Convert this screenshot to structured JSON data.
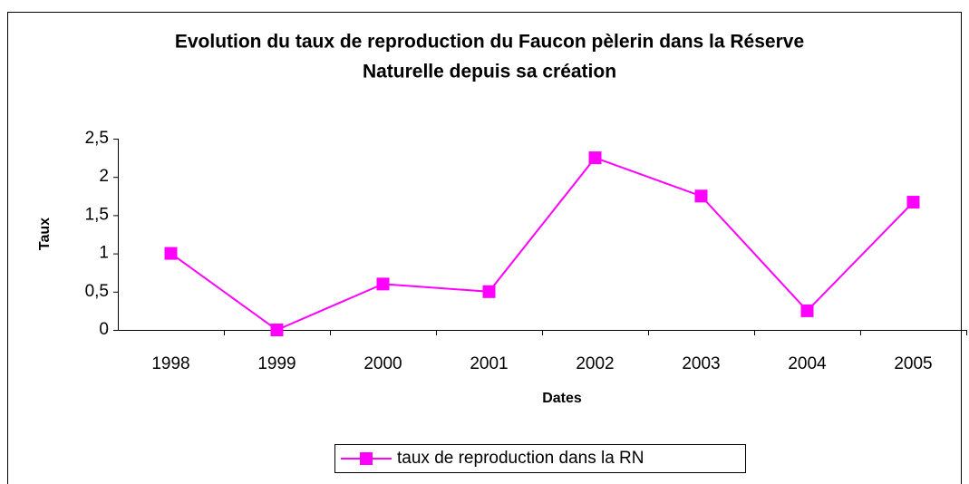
{
  "chart_data": {
    "type": "line",
    "title": [
      "Evolution du taux de reproduction du Faucon pèlerin  dans la Réserve",
      "Naturelle depuis sa création"
    ],
    "x_label": "Dates",
    "y_label": "Taux",
    "categories": [
      "1998",
      "1999",
      "2000",
      "2001",
      "2002",
      "2003",
      "2004",
      "2005"
    ],
    "series": [
      {
        "name": "taux de reproduction dans la RN",
        "color": "#ff00ff",
        "values": [
          1,
          0,
          0.6,
          0.5,
          2.25,
          1.75,
          0.25,
          1.67
        ]
      }
    ],
    "ylim": [
      0,
      2.5
    ],
    "yticks": [
      0,
      {
        "value": 0.5,
        "label": "0,5"
      },
      1,
      {
        "value": 1.5,
        "label": "1,5"
      },
      2,
      {
        "value": 2.5,
        "label": "2,5"
      }
    ],
    "grid": false,
    "legend": "bottom"
  }
}
